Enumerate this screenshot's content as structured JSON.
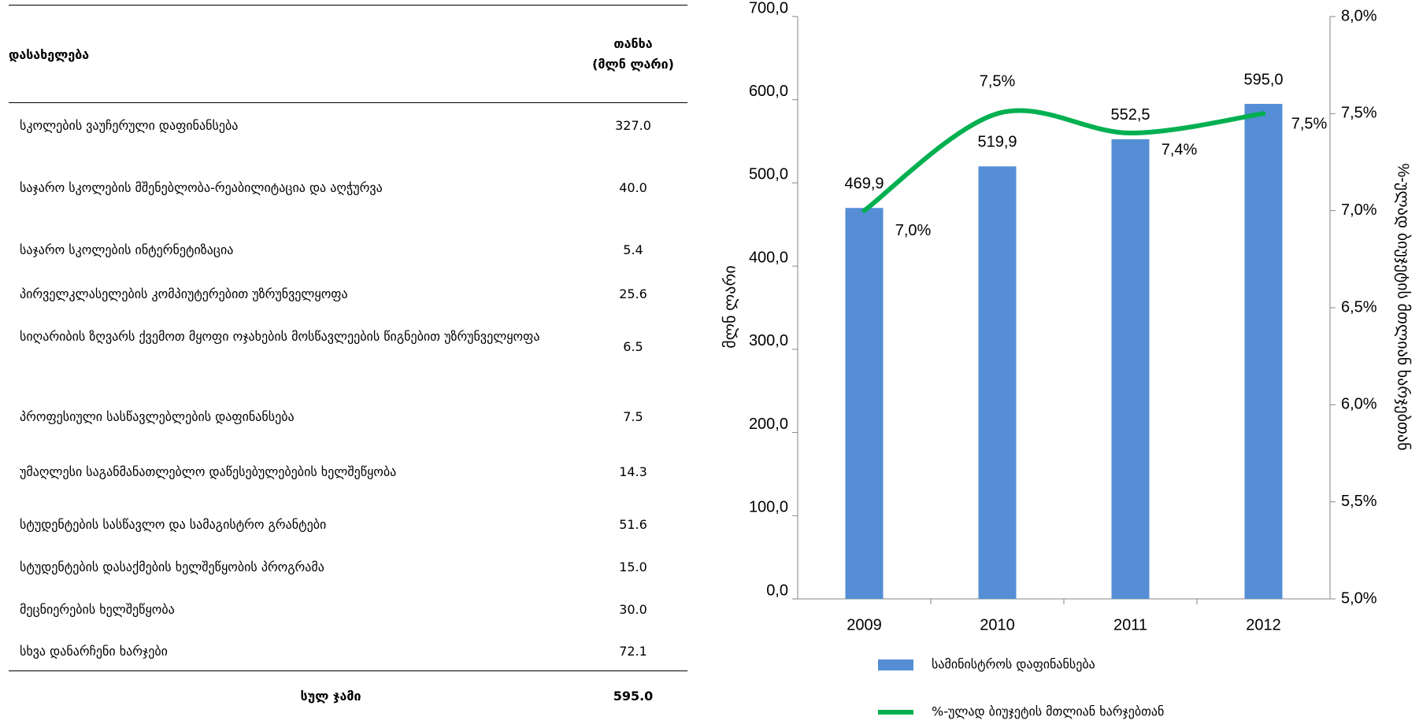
{
  "table": {
    "header": {
      "name": "დასახელება",
      "amount": [
        "თანხა",
        "(მლნ ლარი)"
      ]
    },
    "rows": [
      [
        "სკოლების ვაუჩერული დაფინანსება",
        "327.0"
      ],
      [
        "საჯარო სკოლების მშენებლობა-რეაბილიტაცია და აღჭურვა",
        "40.0"
      ],
      [
        "საჯარო სკოლების ინტერნეტიზაცია",
        "5.4"
      ],
      [
        "პირველკლასელების კომპიუტერებით უზრუნველყოფა",
        "25.6"
      ],
      [
        "სიღარიბის ზღვარს ქვემოთ მყოფი ოჯახების მოსწავლეების წიგნებით უზრუნველყოფა",
        "6.5"
      ],
      [
        "პროფესიული სასწავლებლების დაფინანსება",
        "7.5"
      ],
      [
        "უმაღლესი საგანმანათლებლო დაწესებულებების ხელშეწყობა",
        "14.3"
      ],
      [
        "სტუდენტების სასწავლო და სამაგისტრო გრანტები",
        "51.6"
      ],
      [
        "სტუდენტების დასაქმების ხელშეწყობის პროგრამა",
        "15.0"
      ],
      [
        "მეცნიერების ხელშეწყობა",
        "30.0"
      ],
      [
        "სხვა დანარჩენი ხარჯები",
        "72.1"
      ]
    ],
    "total": [
      "სულ ჯამი",
      "595.0"
    ]
  },
  "chart_data": {
    "type": "bar",
    "categories": [
      "2009",
      "2010",
      "2011",
      "2012"
    ],
    "series": [
      {
        "name": "სამინისტროს დაფინანსება",
        "type": "bar",
        "color": "#558ed5",
        "values": [
          469.9,
          519.9,
          552.5,
          595.0
        ],
        "value_labels": [
          "469,9",
          "519,9",
          "552,5",
          "595,0"
        ]
      },
      {
        "name": "%-ულად ბიუჯეტის მთლიან ხარჯებთან",
        "type": "line",
        "axis": "y2",
        "color": "#00b050",
        "values": [
          7.0,
          7.5,
          7.4,
          7.5
        ],
        "value_labels": [
          "7,0%",
          "7,5%",
          "7,4%",
          "7,5%"
        ]
      }
    ],
    "ylabel": "მლნ ლარი",
    "y2label": "%-ულად ბიუჯეტის მთლიან ხარჯებთან",
    "ylim": [
      0,
      700
    ],
    "yticks": [
      {
        "value": 0,
        "label": "0,0"
      },
      {
        "value": 100,
        "label": "100,0"
      },
      {
        "value": 200,
        "label": "200,0"
      },
      {
        "value": 300,
        "label": "300,0"
      },
      {
        "value": 400,
        "label": "400,0"
      },
      {
        "value": 500,
        "label": "500,0"
      },
      {
        "value": 600,
        "label": "600,0"
      },
      {
        "value": 700,
        "label": "700,0"
      }
    ],
    "y2lim": [
      5,
      8
    ],
    "y2ticks": [
      {
        "value": 5,
        "label": "5,0%"
      },
      {
        "value": 5.5,
        "label": "5,5%"
      },
      {
        "value": 6,
        "label": "6,0%"
      },
      {
        "value": 6.5,
        "label": "6,5%"
      },
      {
        "value": 7,
        "label": "7,0%"
      },
      {
        "value": 7.5,
        "label": "7,5%"
      },
      {
        "value": 8,
        "label": "8,0%"
      }
    ],
    "legend": "bottom"
  }
}
